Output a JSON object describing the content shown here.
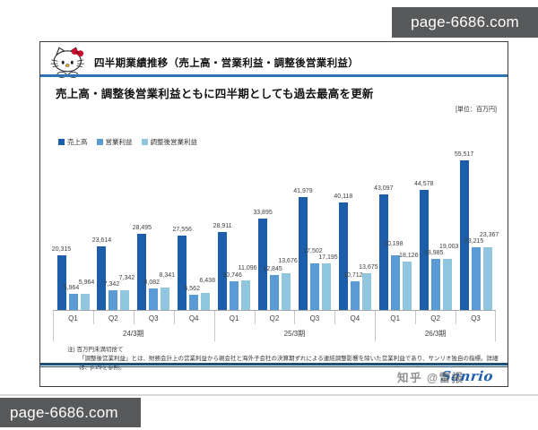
{
  "watermarks": {
    "top_right": "page-6686.com",
    "bottom_left": "page-6686.com",
    "overlay": "知乎 @雷报"
  },
  "slide": {
    "title": "四半期業績推移（売上高・営業利益・調整後営業利益）",
    "subtitle": "売上高・調整後営業利益ともに四半期としても過去最高を更新",
    "unit_label": "[単位：百万円]",
    "note_line1": "注) 百万円未満切捨て",
    "note_line2": "「調整後営業利益」とは、財務会計上の営業利益から親会社と海外子会社の決算期ずれによる連結調整影響を除いた営業利益であり、サンリオ独自の指標。詳細は、p.29を参照。",
    "logo_text": "Sanrio"
  },
  "chart_data": {
    "type": "bar",
    "title": "四半期業績推移（売上高・営業利益・調整後営業利益）",
    "unit": "百万円",
    "categories": [
      "Q1",
      "Q2",
      "Q3",
      "Q4",
      "Q1",
      "Q2",
      "Q3",
      "Q4",
      "Q1",
      "Q2",
      "Q3"
    ],
    "period_groups": [
      {
        "label": "24/3期",
        "span": 4
      },
      {
        "label": "25/3期",
        "span": 4
      },
      {
        "label": "26/3期",
        "span": 3
      }
    ],
    "series": [
      {
        "name": "売上高",
        "color": "#1c5ea9",
        "values": [
          20315,
          23614,
          28495,
          27556,
          28911,
          33895,
          41979,
          40118,
          43097,
          44578,
          55517
        ]
      },
      {
        "name": "営業利益",
        "color": "#5b9bd5",
        "values": [
          5964,
          7342,
          8082,
          5562,
          10746,
          12845,
          17502,
          10712,
          20198,
          18985,
          23215
        ]
      },
      {
        "name": "調整後営業利益",
        "color": "#90c6de",
        "values": [
          5964,
          7342,
          8341,
          6438,
          11096,
          13676,
          17195,
          13675,
          18126,
          19003,
          23367
        ]
      }
    ],
    "ylim": [
      0,
      56000
    ],
    "grid": false,
    "legend_position": "top-left"
  }
}
